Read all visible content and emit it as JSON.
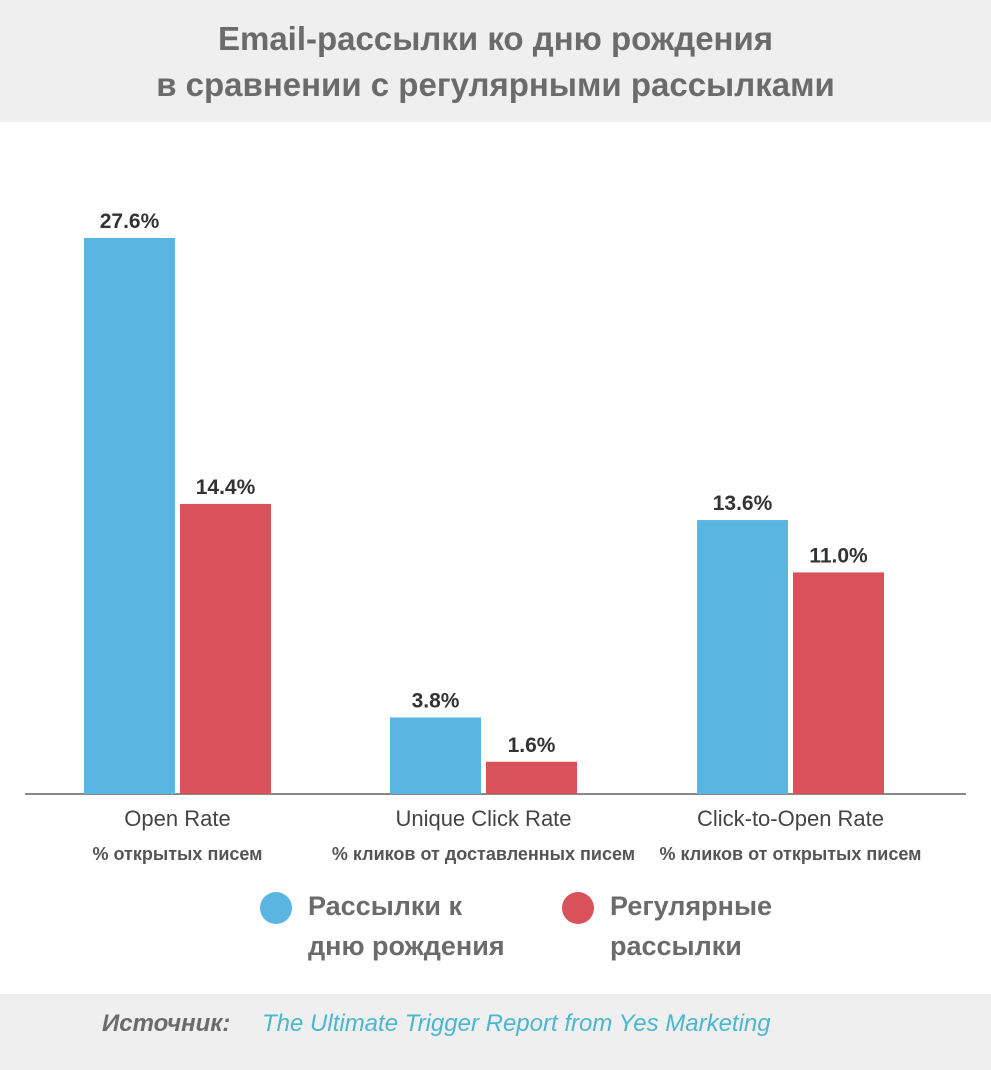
{
  "header": {
    "title_line1": "Email-рассылки ко дню рождения",
    "title_line2": "в сравнении с регулярными рассылками"
  },
  "chart_data": {
    "type": "bar",
    "categories": [
      "Open Rate",
      "Unique Click Rate",
      "Click-to-Open Rate"
    ],
    "category_subtitles": [
      "% открытых писем",
      "% кликов от доставленных писем",
      "% кликов от открытых писем"
    ],
    "series": [
      {
        "name": "Рассылки к дню рождения",
        "values": [
          27.6,
          3.8,
          13.6
        ],
        "labels": [
          "27.6%",
          "3.8%",
          "13.6%"
        ],
        "color": "#5bb5e3"
      },
      {
        "name": "Регулярные рассылки",
        "values": [
          14.4,
          1.6,
          11.0
        ],
        "labels": [
          "14.4%",
          "1.6%",
          "11.0%"
        ],
        "color": "#d9515a"
      }
    ],
    "ylim": [
      0,
      30
    ],
    "grid": false,
    "legend_position": "bottom"
  },
  "legend": [
    {
      "line1": "Рассылки к",
      "line2": "дню рождения",
      "color": "#5bb5e3"
    },
    {
      "line1": "Регулярные",
      "line2": "рассылки",
      "color": "#d9515a"
    }
  ],
  "footer": {
    "source_label": "Источник:",
    "source_link": "The Ultimate Trigger Report from Yes Marketing"
  }
}
